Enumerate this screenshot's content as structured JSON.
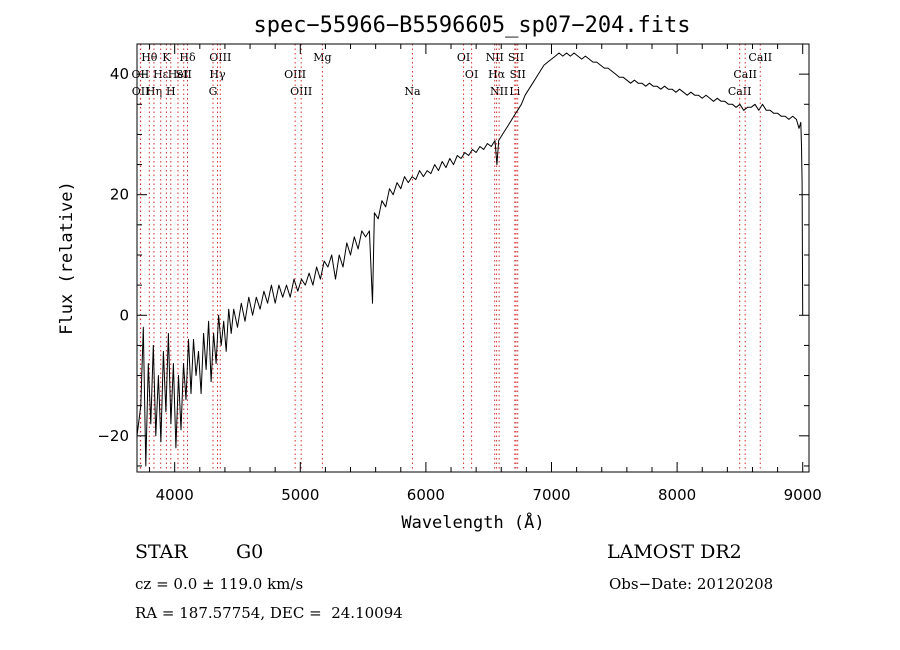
{
  "chart_data": {
    "type": "line",
    "title": "spec−55966−B5596605_sp07−204.fits",
    "xlabel": "Wavelength (Å)",
    "ylabel": "Flux (relative)",
    "xlim": [
      3700,
      9050
    ],
    "ylim": [
      -26,
      45
    ],
    "xticks": [
      4000,
      5000,
      6000,
      7000,
      8000,
      9000
    ],
    "yticks": [
      -20,
      0,
      20,
      40
    ],
    "grid": false,
    "series": [
      {
        "values": [
          [
            3700,
            -20
          ],
          [
            3730,
            -15
          ],
          [
            3750,
            -2
          ],
          [
            3770,
            -25
          ],
          [
            3790,
            -8
          ],
          [
            3810,
            -18
          ],
          [
            3830,
            -5
          ],
          [
            3850,
            -20
          ],
          [
            3870,
            -10
          ],
          [
            3890,
            -21
          ],
          [
            3910,
            -6
          ],
          [
            3930,
            -16
          ],
          [
            3950,
            -3
          ],
          [
            3970,
            -18
          ],
          [
            3990,
            -8
          ],
          [
            4010,
            -22
          ],
          [
            4030,
            -10
          ],
          [
            4050,
            -19
          ],
          [
            4070,
            -8
          ],
          [
            4090,
            -14
          ],
          [
            4110,
            -4
          ],
          [
            4130,
            -13
          ],
          [
            4150,
            -4
          ],
          [
            4170,
            -10
          ],
          [
            4190,
            -6
          ],
          [
            4210,
            -13
          ],
          [
            4230,
            -3
          ],
          [
            4250,
            -9
          ],
          [
            4270,
            -1
          ],
          [
            4290,
            -11
          ],
          [
            4310,
            -3
          ],
          [
            4330,
            -8
          ],
          [
            4350,
            0
          ],
          [
            4370,
            -5
          ],
          [
            4390,
            -1
          ],
          [
            4410,
            -6
          ],
          [
            4430,
            1
          ],
          [
            4450,
            -3
          ],
          [
            4470,
            1
          ],
          [
            4500,
            -2
          ],
          [
            4530,
            2
          ],
          [
            4560,
            -1
          ],
          [
            4590,
            3
          ],
          [
            4620,
            0
          ],
          [
            4650,
            3
          ],
          [
            4680,
            1
          ],
          [
            4710,
            4
          ],
          [
            4740,
            2
          ],
          [
            4770,
            5
          ],
          [
            4800,
            2
          ],
          [
            4830,
            5
          ],
          [
            4860,
            3
          ],
          [
            4890,
            5
          ],
          [
            4920,
            3
          ],
          [
            4950,
            6
          ],
          [
            4980,
            4
          ],
          [
            5010,
            6
          ],
          [
            5040,
            5
          ],
          [
            5070,
            7
          ],
          [
            5100,
            5
          ],
          [
            5130,
            8
          ],
          [
            5160,
            6
          ],
          [
            5190,
            9
          ],
          [
            5220,
            8
          ],
          [
            5250,
            10
          ],
          [
            5280,
            6
          ],
          [
            5310,
            10
          ],
          [
            5340,
            8
          ],
          [
            5370,
            12
          ],
          [
            5400,
            10
          ],
          [
            5430,
            13
          ],
          [
            5460,
            11
          ],
          [
            5490,
            14
          ],
          [
            5520,
            13
          ],
          [
            5550,
            14
          ],
          [
            5575,
            2
          ],
          [
            5590,
            17
          ],
          [
            5620,
            16
          ],
          [
            5650,
            19
          ],
          [
            5680,
            18
          ],
          [
            5710,
            21
          ],
          [
            5740,
            20
          ],
          [
            5770,
            22
          ],
          [
            5800,
            21
          ],
          [
            5830,
            23
          ],
          [
            5860,
            22
          ],
          [
            5890,
            23
          ],
          [
            5920,
            22.5
          ],
          [
            5950,
            24
          ],
          [
            5980,
            23
          ],
          [
            6010,
            24
          ],
          [
            6040,
            23.5
          ],
          [
            6070,
            25
          ],
          [
            6100,
            24
          ],
          [
            6130,
            25.5
          ],
          [
            6160,
            24.5
          ],
          [
            6190,
            26
          ],
          [
            6220,
            25
          ],
          [
            6250,
            26.5
          ],
          [
            6280,
            26
          ],
          [
            6310,
            27
          ],
          [
            6340,
            26.5
          ],
          [
            6370,
            27.5
          ],
          [
            6400,
            27
          ],
          [
            6430,
            28
          ],
          [
            6460,
            27.5
          ],
          [
            6490,
            28.5
          ],
          [
            6520,
            28
          ],
          [
            6550,
            29
          ],
          [
            6565,
            25
          ],
          [
            6580,
            29
          ],
          [
            6610,
            30
          ],
          [
            6640,
            31
          ],
          [
            6670,
            32
          ],
          [
            6700,
            33
          ],
          [
            6730,
            34
          ],
          [
            6760,
            35
          ],
          [
            6790,
            36.5
          ],
          [
            6820,
            37.5
          ],
          [
            6850,
            38.5
          ],
          [
            6880,
            39.5
          ],
          [
            6910,
            40.5
          ],
          [
            6940,
            41.5
          ],
          [
            6970,
            42
          ],
          [
            7000,
            42.5
          ],
          [
            7030,
            43
          ],
          [
            7060,
            43.5
          ],
          [
            7090,
            43
          ],
          [
            7120,
            43.5
          ],
          [
            7150,
            43
          ],
          [
            7180,
            43.5
          ],
          [
            7210,
            43
          ],
          [
            7240,
            42.5
          ],
          [
            7270,
            43
          ],
          [
            7300,
            42.5
          ],
          [
            7330,
            42
          ],
          [
            7360,
            42
          ],
          [
            7390,
            41.5
          ],
          [
            7420,
            41
          ],
          [
            7450,
            41
          ],
          [
            7480,
            40.5
          ],
          [
            7510,
            40
          ],
          [
            7540,
            39.5
          ],
          [
            7570,
            39.5
          ],
          [
            7600,
            39
          ],
          [
            7630,
            38.5
          ],
          [
            7660,
            39
          ],
          [
            7690,
            38.5
          ],
          [
            7720,
            38.5
          ],
          [
            7750,
            38
          ],
          [
            7780,
            38.5
          ],
          [
            7810,
            38
          ],
          [
            7840,
            38
          ],
          [
            7870,
            37.5
          ],
          [
            7900,
            38
          ],
          [
            7930,
            37.5
          ],
          [
            7960,
            37.5
          ],
          [
            7990,
            37
          ],
          [
            8020,
            37.5
          ],
          [
            8050,
            37
          ],
          [
            8080,
            36.5
          ],
          [
            8110,
            37
          ],
          [
            8140,
            36.5
          ],
          [
            8170,
            36.5
          ],
          [
            8200,
            36
          ],
          [
            8230,
            36.5
          ],
          [
            8260,
            36
          ],
          [
            8290,
            35.5
          ],
          [
            8320,
            36
          ],
          [
            8350,
            35.5
          ],
          [
            8380,
            35.5
          ],
          [
            8410,
            35
          ],
          [
            8440,
            35
          ],
          [
            8470,
            34.5
          ],
          [
            8500,
            35
          ],
          [
            8530,
            34
          ],
          [
            8560,
            34.5
          ],
          [
            8590,
            34.5
          ],
          [
            8620,
            35
          ],
          [
            8650,
            34
          ],
          [
            8680,
            35
          ],
          [
            8710,
            34
          ],
          [
            8740,
            34
          ],
          [
            8770,
            33.5
          ],
          [
            8800,
            33.5
          ],
          [
            8830,
            33
          ],
          [
            8860,
            33
          ],
          [
            8890,
            32.5
          ],
          [
            8920,
            33
          ],
          [
            8950,
            32.5
          ],
          [
            8970,
            31
          ],
          [
            8985,
            32
          ],
          [
            8990,
            28
          ],
          [
            8995,
            22
          ],
          [
            9000,
            0
          ]
        ]
      }
    ],
    "lines": [
      {
        "label": "Hθ",
        "x": 3798,
        "row": 1
      },
      {
        "label": "K",
        "x": 3934,
        "row": 1
      },
      {
        "label": "Hδ",
        "x": 4102,
        "row": 1
      },
      {
        "label": "OIII",
        "x": 4363,
        "row": 1
      },
      {
        "label": "Mg",
        "x": 5176,
        "row": 1
      },
      {
        "label": "OI",
        "x": 6300,
        "row": 1
      },
      {
        "label": "NII",
        "x": 6548,
        "row": 1
      },
      {
        "label": "SII",
        "x": 6717,
        "row": 1
      },
      {
        "label": "CaII",
        "x": 8662,
        "row": 1
      },
      {
        "label": "OII",
        "x": 3727,
        "row": 2
      },
      {
        "label": "Hε",
        "x": 3889,
        "row": 2
      },
      {
        "label": "HeI",
        "x": 4026,
        "row": 2
      },
      {
        "label": "SII",
        "x": 4072,
        "row": 2
      },
      {
        "label": "Hγ",
        "x": 4341,
        "row": 2
      },
      {
        "label": "OIII",
        "x": 4959,
        "row": 2
      },
      {
        "label": "OI",
        "x": 6364,
        "row": 2
      },
      {
        "label": "Hα",
        "x": 6563,
        "row": 2
      },
      {
        "label": "SII",
        "x": 6731,
        "row": 2
      },
      {
        "label": "CaII",
        "x": 8542,
        "row": 2
      },
      {
        "label": "OII",
        "x": 3729,
        "row": 3
      },
      {
        "label": "Hη",
        "x": 3835,
        "row": 3
      },
      {
        "label": "H",
        "x": 3969,
        "row": 3
      },
      {
        "label": "G",
        "x": 4305,
        "row": 3
      },
      {
        "label": "OIII",
        "x": 5007,
        "row": 3
      },
      {
        "label": "Na",
        "x": 5893,
        "row": 3
      },
      {
        "label": "NII",
        "x": 6583,
        "row": 3
      },
      {
        "label": "Li",
        "x": 6708,
        "row": 3
      },
      {
        "label": "CaII",
        "x": 8498,
        "row": 3
      }
    ]
  },
  "info": {
    "object_class": "STAR",
    "subclass": "G0",
    "survey": "LAMOST DR2",
    "redshift": "cz = 0.0 ± 119.0 km/s",
    "obs_date": "Obs−Date: 20120208",
    "coords": "RA = 187.57754, DEC =  24.10094"
  }
}
